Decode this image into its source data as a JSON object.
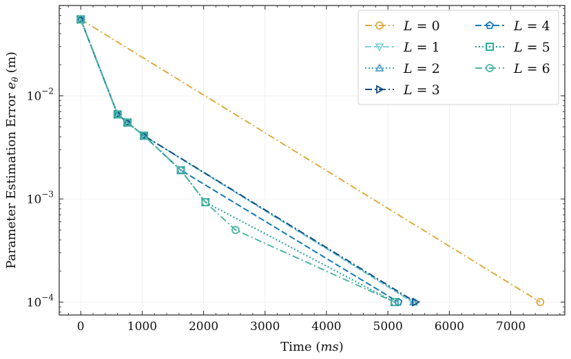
{
  "chart_data": {
    "type": "line",
    "title": "",
    "xlabel": "Time (ms)",
    "xlabel_plain": "Time (",
    "xlabel_unit": "ms",
    "xlabel_close": ")",
    "ylabel_prefix": "Parameter Estimation Error ",
    "ylabel_symbol": "e",
    "ylabel_sub": "θ",
    "ylabel_unit": " (m)",
    "xscale": "linear",
    "yscale": "log",
    "xlim": [
      -350,
      7880
    ],
    "ylim": [
      7.5e-05,
      0.075
    ],
    "xticks": [
      0,
      1000,
      2000,
      3000,
      4000,
      5000,
      6000,
      7000
    ],
    "xtick_labels": [
      "0",
      "1000",
      "2000",
      "3000",
      "4000",
      "5000",
      "6000",
      "7000"
    ],
    "yticks": [
      0.0001,
      0.001,
      0.01
    ],
    "ytick_labels": [
      {
        "base": "10",
        "exp": "−4"
      },
      {
        "base": "10",
        "exp": "−3"
      },
      {
        "base": "10",
        "exp": "−2"
      }
    ],
    "grid": true,
    "legend_position": "top-right",
    "series": [
      {
        "name": "L = 0",
        "label_var": "L",
        "label_val": "= 0",
        "color": "#e0a93a",
        "dash": "dashdot",
        "marker": "circle",
        "x": [
          0,
          7480
        ],
        "y": [
          0.055,
          0.0001
        ]
      },
      {
        "name": "L = 1",
        "label_var": "L",
        "label_val": "= 1",
        "color": "#7fd2dc",
        "dash": "dashed",
        "marker": "triangle-down",
        "x": [
          0,
          600,
          760,
          1030,
          5400
        ],
        "y": [
          0.055,
          0.0066,
          0.0055,
          0.0041,
          0.0001
        ]
      },
      {
        "name": "L = 2",
        "label_var": "L",
        "label_val": "= 2",
        "color": "#4a9fc8",
        "dash": "dotted",
        "marker": "triangle-up",
        "x": [
          0,
          600,
          760,
          1030,
          5420
        ],
        "y": [
          0.055,
          0.0066,
          0.0055,
          0.0041,
          0.0001
        ]
      },
      {
        "name": "L = 3",
        "label_var": "L",
        "label_val": "= 3",
        "color": "#0f4c81",
        "dash": "dashdot",
        "marker": "triangle-right",
        "x": [
          0,
          600,
          760,
          1030,
          5450
        ],
        "y": [
          0.055,
          0.0066,
          0.0055,
          0.0041,
          0.0001
        ]
      },
      {
        "name": "L = 4",
        "label_var": "L",
        "label_val": "= 4",
        "color": "#1478b8",
        "dash": "dashed",
        "marker": "pentagon",
        "x": [
          0,
          600,
          760,
          1030,
          1630,
          5170
        ],
        "y": [
          0.055,
          0.0066,
          0.0055,
          0.0041,
          0.0019,
          0.0001
        ]
      },
      {
        "name": "L = 5",
        "label_var": "L",
        "label_val": "= 5",
        "color": "#1aa093",
        "dash": "dotted",
        "marker": "square",
        "x": [
          0,
          600,
          760,
          1030,
          1630,
          2030,
          5110
        ],
        "y": [
          0.055,
          0.0066,
          0.0055,
          0.0041,
          0.0019,
          0.00093,
          0.0001
        ]
      },
      {
        "name": "L = 6",
        "label_var": "L",
        "label_val": "= 6",
        "color": "#4db3a2",
        "dash": "dashdot",
        "marker": "circle-dot",
        "x": [
          0,
          600,
          760,
          1030,
          1630,
          2030,
          2520,
          5110
        ],
        "y": [
          0.055,
          0.0066,
          0.0055,
          0.0041,
          0.0019,
          0.00093,
          0.0005,
          0.0001
        ]
      }
    ]
  }
}
